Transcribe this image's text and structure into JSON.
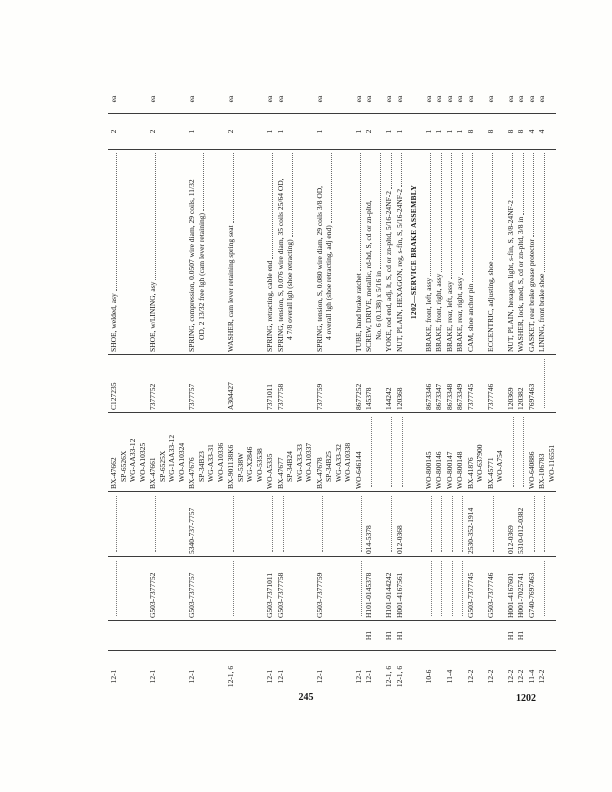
{
  "page": {
    "page_number": "245",
    "paragraph_ref": "1202"
  },
  "table": {
    "rows": [
      {
        "type": "item",
        "fig": "12-1",
        "h1": "",
        "vehicular": "",
        "stock": "",
        "mfr": [
          "BX-47662",
          "SP-6526X",
          "WG-AA33-12",
          "WO-A10325"
        ],
        "ord": "C127235",
        "desc": [
          "SHOE, welded, asy"
        ],
        "qty": "2",
        "unit": "ea"
      },
      {
        "type": "item",
        "fig": "12-1",
        "h1": "",
        "vehicular": "G503-7377752",
        "stock": "",
        "mfr": [
          "BX-47661",
          "SP-6525X",
          "WG-1AA33-12",
          "WO-A10324"
        ],
        "ord": "7377752",
        "desc": [
          "SHOE, w/LINING, asy"
        ],
        "qty": "2",
        "unit": "ea"
      },
      {
        "type": "item",
        "fig": "12-1",
        "h1": "",
        "vehicular": "G503-7377757",
        "stock": "5340-737-7757",
        "mfr": [
          "BX-47676",
          "SP-34B23",
          "WG-A33-31",
          "WO-A10336"
        ],
        "ord": "7377757",
        "desc": [
          "SPRING, compression, 0.0507 wire diam, 29 coils, 11/32",
          "OD, 2 13/32 free lgh (cam lever retaining)"
        ],
        "qty": "1",
        "unit": "ea"
      },
      {
        "type": "item",
        "fig": "12-1, 6",
        "h1": "",
        "vehicular": "",
        "stock": "",
        "mfr": [
          "BX-901138K6",
          "SP-538W",
          "WG-X2846",
          "WO-53538"
        ],
        "ord": "A304427",
        "desc": [
          "WASHER, cam lever retaining spring seat"
        ],
        "qty": "2",
        "unit": "ea"
      },
      {
        "type": "item",
        "fig": "12-1",
        "h1": "",
        "vehicular": "G503-7371011",
        "stock": "",
        "mfr": [
          "WO-A5335"
        ],
        "ord": "7371011",
        "desc": [
          "SPRING, retracting, cable end"
        ],
        "qty": "1",
        "unit": "ea"
      },
      {
        "type": "item",
        "fig": "12-1",
        "h1": "",
        "vehicular": "G503-7377758",
        "stock": "",
        "mfr": [
          "BX-47677",
          "SP-34B24",
          "WG-A33-33",
          "WO-A10337"
        ],
        "ord": "7377758",
        "desc": [
          "SPRING, tension, S, 0.076 wire diam, 35 coils 25/64 OD,",
          "4 7/8 overall lgh (shoe retracting)"
        ],
        "qty": "1",
        "unit": "ea"
      },
      {
        "type": "item",
        "fig": "12-1",
        "h1": "",
        "vehicular": "G503-7377759",
        "stock": "",
        "mfr": [
          "BX-47678",
          "SP-34B25",
          "WG-A33-32",
          "WO-A10338"
        ],
        "ord": "7377759",
        "desc": [
          "SPRING, tension, S, 0.080 wire diam, 29 coils 3/8 OD,",
          "4 overall lgh (shoe retracting, adj end)"
        ],
        "qty": "1",
        "unit": "ea"
      },
      {
        "type": "item",
        "fig": "12-1",
        "h1": "",
        "vehicular": "",
        "stock": "",
        "mfr": [
          "WO-646144"
        ],
        "ord": "8677252",
        "desc": [
          "TUBE, hand brake ratchet"
        ],
        "qty": "1",
        "unit": "ea"
      },
      {
        "type": "item",
        "fig": "12-1",
        "h1": "H1",
        "vehicular": "H101-0145378",
        "stock": "014-5378",
        "mfr": [],
        "ord": "145378",
        "desc": [
          "SCREW, DRIVE, metallic, rd-hd, S, cd or zn-pltd,",
          "No. 6 (0.138) x 5/16 in"
        ],
        "qty": "2",
        "unit": "ea"
      },
      {
        "type": "item",
        "fig": "12-1, 6",
        "h1": "H1",
        "vehicular": "H101-0144242",
        "stock": "",
        "mfr": [],
        "ord": "144242",
        "desc": [
          "YOKE, rod end, adj, lt, S, cd or zn-pltd, 5/16-24NF-2"
        ],
        "qty": "1",
        "unit": "ea"
      },
      {
        "type": "item",
        "fig": "12-1, 6",
        "h1": "H1",
        "vehicular": "H001-4167561",
        "stock": "012-0368",
        "mfr": [],
        "ord": "120368",
        "desc": [
          "NUT, PLAIN, HEXAGON, reg, s-fin, S, 5/16-24NF-2"
        ],
        "qty": "1",
        "unit": "ea"
      },
      {
        "type": "section",
        "header": "1202—SERVICE BRAKE ASSEMBLY"
      },
      {
        "type": "item",
        "fig": "10-6",
        "h1": "",
        "vehicular": "",
        "stock": "",
        "mfr": [
          "WO-800145"
        ],
        "ord": "8673346",
        "desc": [
          "BRAKE, front, left, assy"
        ],
        "qty": "1",
        "unit": "ea"
      },
      {
        "type": "item",
        "fig": "",
        "h1": "",
        "vehicular": "",
        "stock": "",
        "mfr": [
          "WO-800146"
        ],
        "ord": "8673347",
        "desc": [
          "BRAKE, front, right, assy"
        ],
        "qty": "1",
        "unit": "ea"
      },
      {
        "type": "item",
        "fig": "11-4",
        "h1": "",
        "vehicular": "",
        "stock": "",
        "mfr": [
          "WO-800147"
        ],
        "ord": "8673348",
        "desc": [
          "BRAKE, rear, left, assy"
        ],
        "qty": "1",
        "unit": "ea"
      },
      {
        "type": "item",
        "fig": "",
        "h1": "",
        "vehicular": "",
        "stock": "",
        "mfr": [
          "WO-800148"
        ],
        "ord": "8673349",
        "desc": [
          "BRAKE, rear, right, assy"
        ],
        "qty": "1",
        "unit": "ea"
      },
      {
        "type": "item",
        "fig": "12-2",
        "h1": "",
        "vehicular": "G503-7377745",
        "stock": "2530-352-1914",
        "mfr": [
          "BX-41876",
          "WO-637900"
        ],
        "ord": "7377745",
        "desc": [
          "CAM, shoe anchor pin"
        ],
        "qty": "8",
        "unit": "ea"
      },
      {
        "type": "item",
        "fig": "12-2",
        "h1": "",
        "vehicular": "G503-7377746",
        "stock": "",
        "mfr": [
          "BX-45771",
          "WO-A754"
        ],
        "ord": "7377746",
        "desc": [
          "ECCENTRIC, adjusting, shoe"
        ],
        "qty": "8",
        "unit": "ea"
      },
      {
        "type": "item",
        "fig": "12-2",
        "h1": "H1",
        "vehicular": "H001-4167601",
        "stock": "012-0369",
        "mfr": [],
        "ord": "120369",
        "desc": [
          "NUT, PLAIN, hexagon, light, s-fin, S, 3/8-24NF-2"
        ],
        "qty": "8",
        "unit": "ea"
      },
      {
        "type": "item",
        "fig": "12-2",
        "h1": "H1",
        "vehicular": "H001-7025741",
        "stock": "5310-012-0382",
        "mfr": [],
        "ord": "120382",
        "desc": [
          "WASHER, lock, med, S, cd or zn-pltd, 3/8 in"
        ],
        "qty": "8",
        "unit": "ea"
      },
      {
        "type": "item",
        "fig": "11-4",
        "h1": "",
        "vehicular": "G740-7697463",
        "stock": "",
        "mfr": [
          "WO-640886"
        ],
        "ord": "7697463",
        "desc": [
          "GASKET, rear brake grease protector"
        ],
        "qty": "4",
        "unit": "ea"
      },
      {
        "type": "item",
        "fig": "12-2",
        "h1": "",
        "vehicular": "",
        "stock": "",
        "mfr": [
          "BX-106783",
          "WO-116551"
        ],
        "ord": "",
        "desc": [
          "LINING, front brake shoe"
        ],
        "qty": "4",
        "unit": "ea"
      }
    ]
  }
}
